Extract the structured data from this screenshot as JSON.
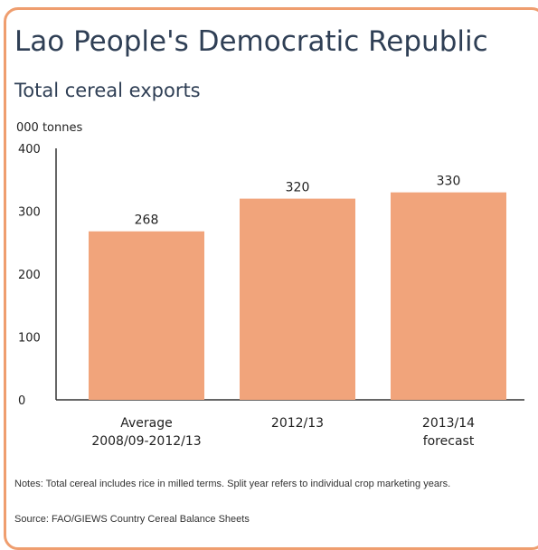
{
  "title": "Lao People's Democratic Republic",
  "subtitle": "Total cereal exports",
  "colors": {
    "border": "#ef9e6f",
    "bar": "#f1a47b",
    "title": "#2f3f55",
    "axis": "#333333"
  },
  "chart_data": {
    "type": "bar",
    "unit_label": "000 tonnes",
    "categories": [
      [
        "Average",
        "2008/09-2012/13"
      ],
      [
        "2012/13"
      ],
      [
        "2013/14",
        "forecast"
      ]
    ],
    "values": [
      268,
      320,
      330
    ],
    "data_labels": [
      "268",
      "320",
      "330"
    ],
    "ylim": [
      0,
      400
    ],
    "yticks": [
      "0",
      "100",
      "200",
      "300",
      "400"
    ],
    "grid": false,
    "legend": "none"
  },
  "notes": "Notes: Total cereal includes rice in milled terms. Split year refers to individual crop marketing years.",
  "source": "Source: FAO/GIEWS Country Cereal Balance Sheets"
}
